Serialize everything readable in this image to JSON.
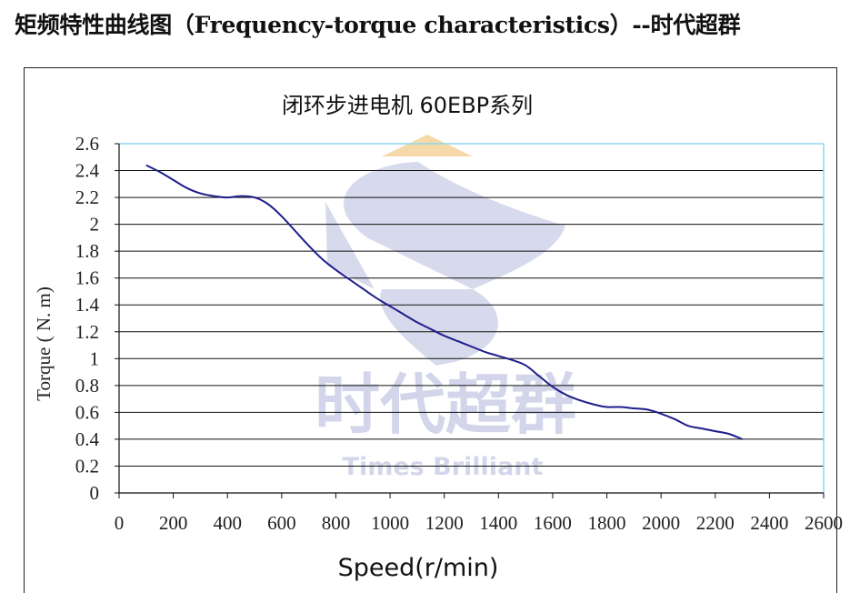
{
  "page": {
    "title": "矩频特性曲线图（Frequency-torque characteristics）--时代超群"
  },
  "watermark": {
    "text_cn": "时代超群",
    "text_en": "Times Brilliant",
    "color": "#c9cde6",
    "accent_color": "#f6d9a8"
  },
  "chart_data": {
    "type": "line",
    "title": "闭环步进电机 60EBP系列",
    "xlabel": "Speed(r/min)",
    "ylabel": "Torque ( N. m)",
    "xlim": [
      0,
      2600
    ],
    "ylim": [
      0,
      2.6
    ],
    "x_ticks": [
      0,
      200,
      400,
      600,
      800,
      1000,
      1200,
      1400,
      1600,
      1800,
      2000,
      2200,
      2400,
      2600
    ],
    "x_tick_labels": [
      "0",
      "200",
      "400",
      "600",
      "800",
      "1000",
      "1200",
      "1400",
      "1600",
      "1800",
      "2000",
      "2200",
      "2400",
      "2600"
    ],
    "y_ticks": [
      0,
      0.2,
      0.4,
      0.6,
      0.8,
      1,
      1.2,
      1.4,
      1.6,
      1.8,
      2,
      2.2,
      2.4,
      2.6
    ],
    "y_tick_labels": [
      "0",
      "0.2",
      "0.4",
      "0.6",
      "0.8",
      "1",
      "1.2",
      "1.4",
      "1.6",
      "1.8",
      "2",
      "2.2",
      "2.4",
      "2.6"
    ],
    "grid": true,
    "line_color": "#1e1e8c",
    "series": [
      {
        "x": [
          100,
          150,
          200,
          250,
          300,
          350,
          400,
          450,
          500,
          550,
          600,
          650,
          700,
          750,
          800,
          850,
          900,
          950,
          1000,
          1050,
          1100,
          1150,
          1200,
          1250,
          1300,
          1350,
          1400,
          1450,
          1500,
          1550,
          1600,
          1650,
          1700,
          1750,
          1800,
          1850,
          1900,
          1950,
          2000,
          2050,
          2100,
          2150,
          2200,
          2250,
          2300
        ],
        "y": [
          2.44,
          2.39,
          2.33,
          2.27,
          2.23,
          2.21,
          2.2,
          2.21,
          2.2,
          2.15,
          2.06,
          1.95,
          1.84,
          1.74,
          1.66,
          1.59,
          1.52,
          1.45,
          1.39,
          1.33,
          1.27,
          1.22,
          1.17,
          1.13,
          1.09,
          1.05,
          1.02,
          0.99,
          0.95,
          0.87,
          0.79,
          0.73,
          0.69,
          0.66,
          0.64,
          0.64,
          0.63,
          0.62,
          0.59,
          0.55,
          0.5,
          0.48,
          0.46,
          0.44,
          0.4
        ]
      }
    ]
  }
}
